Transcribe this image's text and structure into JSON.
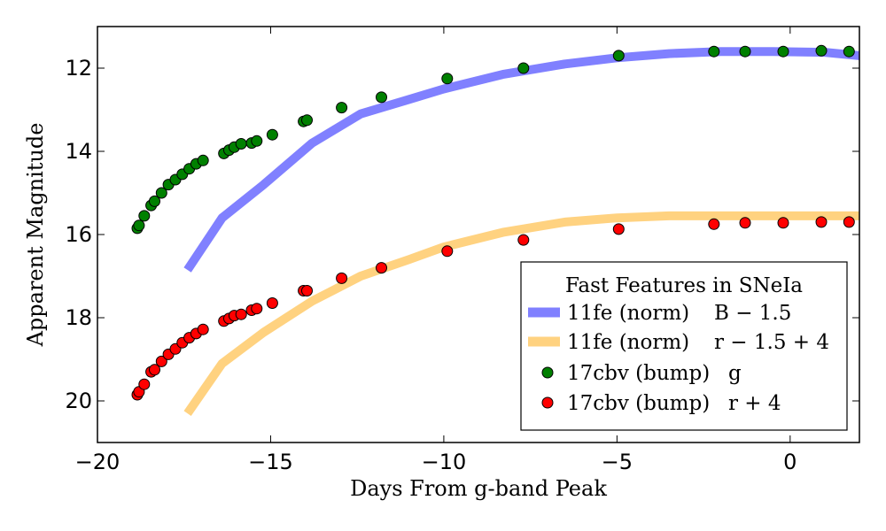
{
  "chart_data": {
    "type": "scatter",
    "title": "",
    "xlabel": "Days From g-band Peak",
    "ylabel": "Apparent Magnitude",
    "xlim": [
      -20,
      2
    ],
    "ylim": [
      21,
      11
    ],
    "y_inverted": true,
    "xticks": [
      -20,
      -15,
      -10,
      -5,
      0
    ],
    "xtick_labels": [
      "−20",
      "−15",
      "−10",
      "−5",
      "0"
    ],
    "yticks": [
      12,
      14,
      16,
      18,
      20
    ],
    "ytick_labels": [
      "12",
      "14",
      "16",
      "18",
      "20"
    ],
    "grid": false,
    "legend": {
      "title": "Fast Features in SNeIa",
      "position": "lower-right",
      "entries": [
        {
          "label": "11fe (norm)",
          "math": "B − 1.5",
          "marker": "line",
          "color": "#8080ff"
        },
        {
          "label": "11fe (norm)",
          "math": "r − 1.5 + 4",
          "marker": "line",
          "color": "#ffd280"
        },
        {
          "label": "17cbv (bump)",
          "math": "g",
          "marker": "circle",
          "color": "#008000"
        },
        {
          "label": "17cbv (bump)",
          "math": "r + 4",
          "marker": "circle",
          "color": "#ff0000"
        }
      ]
    },
    "series": [
      {
        "name": "11fe (norm) B − 1.5",
        "kind": "line",
        "color": "#8080ff",
        "x": [
          -17.4,
          -16.4,
          -15.2,
          -13.8,
          -12.4,
          -11.0,
          -10.0,
          -8.3,
          -6.5,
          -5.0,
          -3.5,
          -2.0,
          -0.5,
          1.0,
          2.0
        ],
        "y": [
          16.85,
          15.6,
          14.8,
          13.8,
          13.1,
          12.75,
          12.5,
          12.15,
          11.9,
          11.75,
          11.65,
          11.6,
          11.6,
          11.62,
          11.7
        ]
      },
      {
        "name": "11fe (norm) r − 1.5 + 4",
        "kind": "line",
        "color": "#ffd280",
        "x": [
          -17.4,
          -16.4,
          -15.2,
          -13.8,
          -12.4,
          -11.0,
          -10.0,
          -8.3,
          -6.5,
          -5.0,
          -3.5,
          -2.0,
          -0.5,
          1.0,
          2.0
        ],
        "y": [
          20.3,
          19.1,
          18.35,
          17.6,
          17.0,
          16.6,
          16.3,
          15.95,
          15.7,
          15.6,
          15.55,
          15.55,
          15.55,
          15.55,
          15.55
        ]
      },
      {
        "name": "17cbv (bump) g",
        "kind": "scatter",
        "color": "#008000",
        "x": [
          -18.85,
          -18.8,
          -18.65,
          -18.45,
          -18.35,
          -18.15,
          -17.95,
          -17.75,
          -17.55,
          -17.35,
          -17.15,
          -16.95,
          -16.35,
          -16.2,
          -16.05,
          -15.85,
          -15.55,
          -15.4,
          -14.95,
          -14.05,
          -13.95,
          -12.95,
          -11.8,
          -9.9,
          -7.7,
          -4.95,
          -2.2,
          -1.3,
          -0.2,
          0.9,
          1.7
        ],
        "y": [
          15.85,
          15.78,
          15.55,
          15.3,
          15.2,
          15.0,
          14.8,
          14.68,
          14.55,
          14.42,
          14.3,
          14.22,
          14.05,
          13.97,
          13.9,
          13.82,
          13.8,
          13.75,
          13.6,
          13.28,
          13.25,
          12.95,
          12.7,
          12.25,
          12.0,
          11.7,
          11.6,
          11.6,
          11.6,
          11.58,
          11.6
        ]
      },
      {
        "name": "17cbv (bump) r + 4",
        "kind": "scatter",
        "color": "#ff0000",
        "x": [
          -18.85,
          -18.8,
          -18.65,
          -18.45,
          -18.35,
          -18.15,
          -17.95,
          -17.75,
          -17.55,
          -17.35,
          -17.15,
          -16.95,
          -16.35,
          -16.2,
          -16.05,
          -15.85,
          -15.55,
          -15.4,
          -14.95,
          -14.05,
          -13.95,
          -12.95,
          -11.8,
          -9.9,
          -7.7,
          -4.95,
          -2.2,
          -1.3,
          -0.2,
          0.9,
          1.7
        ],
        "y": [
          19.85,
          19.78,
          19.6,
          19.3,
          19.25,
          19.05,
          18.88,
          18.75,
          18.6,
          18.48,
          18.38,
          18.28,
          18.08,
          18.02,
          17.95,
          17.92,
          17.82,
          17.78,
          17.65,
          17.35,
          17.35,
          17.05,
          16.8,
          16.4,
          16.13,
          15.87,
          15.75,
          15.72,
          15.72,
          15.7,
          15.7
        ]
      }
    ]
  }
}
